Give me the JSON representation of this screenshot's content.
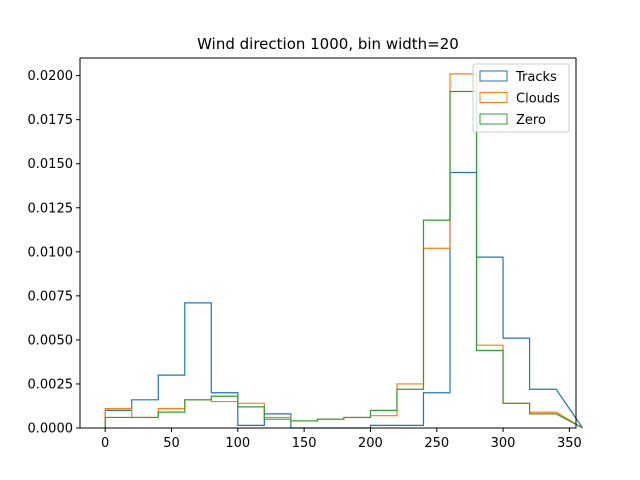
{
  "chart_data": {
    "type": "step-histogram",
    "title": "Wind direction 1000, bin width=20",
    "xlabel": "",
    "ylabel": "",
    "xlim": [
      -19,
      355
    ],
    "ylim": [
      0,
      0.021
    ],
    "xticks": [
      0,
      50,
      100,
      150,
      200,
      250,
      300,
      350
    ],
    "xtick_labels": [
      "0",
      "50",
      "100",
      "150",
      "200",
      "250",
      "300",
      "350"
    ],
    "yticks": [
      0,
      0.0025,
      0.005,
      0.0075,
      0.01,
      0.0125,
      0.015,
      0.0175,
      0.02
    ],
    "ytick_labels": [
      "0.0000",
      "0.0025",
      "0.0050",
      "0.0075",
      "0.0100",
      "0.0125",
      "0.0150",
      "0.0175",
      "0.0200"
    ],
    "bin_edges": [
      0,
      20,
      40,
      60,
      80,
      100,
      120,
      140,
      160,
      180,
      200,
      220,
      240,
      260,
      280,
      300,
      320,
      340
    ],
    "legend_position": "top-right",
    "series": [
      {
        "name": "Tracks",
        "color": "#1f77b4",
        "values": [
          0.001,
          0.0016,
          0.003,
          0.0071,
          0.002,
          0.00015,
          0.0008,
          0.0,
          0.0,
          0.0,
          0.00015,
          0.00015,
          0.002,
          0.0145,
          0.0097,
          0.0051,
          0.0022
        ]
      },
      {
        "name": "Clouds",
        "color": "#ff7f0e",
        "values": [
          0.0011,
          0.0006,
          0.0011,
          0.0016,
          0.0015,
          0.0014,
          0.0006,
          0.0004,
          0.0005,
          0.0006,
          0.0007,
          0.0025,
          0.0102,
          0.0201,
          0.0047,
          0.0014,
          0.0009
        ]
      },
      {
        "name": "Zero",
        "color": "#2ca02c",
        "values": [
          0.0006,
          0.0006,
          0.0009,
          0.0016,
          0.0018,
          0.0012,
          0.0005,
          0.0004,
          0.0005,
          0.0006,
          0.001,
          0.0022,
          0.0118,
          0.0191,
          0.0044,
          0.0014,
          0.0008
        ]
      }
    ]
  }
}
